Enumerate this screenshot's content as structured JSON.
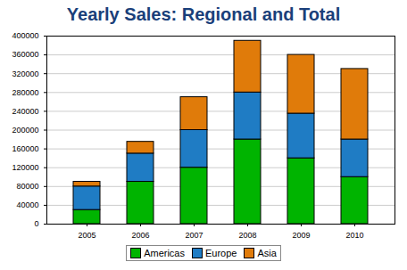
{
  "chart_data": {
    "type": "bar",
    "title": "Yearly Sales: Regional and Total",
    "categories": [
      "2005",
      "2006",
      "2007",
      "2008",
      "2009",
      "2010"
    ],
    "series": [
      {
        "name": "Americas",
        "color": "#00b400",
        "values": [
          30000,
          90000,
          120000,
          180000,
          140000,
          100000
        ]
      },
      {
        "name": "Europe",
        "color": "#1f7cc4",
        "values": [
          50000,
          60000,
          80000,
          100000,
          95000,
          80000
        ]
      },
      {
        "name": "Asia",
        "color": "#e07b0a",
        "values": [
          10000,
          25000,
          70000,
          110000,
          125000,
          150000
        ]
      }
    ],
    "stacked": true,
    "ylim": [
      0,
      400000
    ],
    "yticks": [
      0,
      40000,
      80000,
      120000,
      160000,
      200000,
      240000,
      280000,
      320000,
      360000,
      400000
    ],
    "grid": true,
    "legend": "bottom"
  }
}
